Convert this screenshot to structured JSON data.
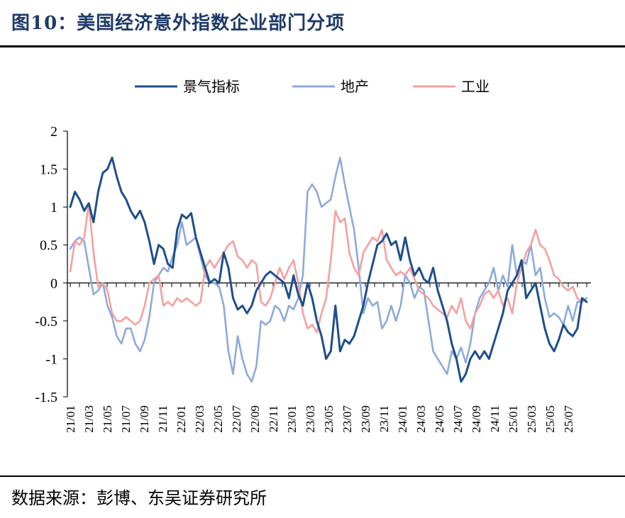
{
  "header": {
    "title": "图10：美国经济意外指数企业部门分项"
  },
  "footer": {
    "source": "数据来源：彭博、东吴证券研究所"
  },
  "colors": {
    "景气指标": "#1f4e8c",
    "地产": "#8eaadb",
    "工业": "#f4a0a0"
  },
  "chart_data": {
    "type": "line",
    "title": "",
    "xlabel": "",
    "ylabel": "",
    "ylim": [
      -1.5,
      2
    ],
    "yticks": [
      "2",
      "1.5",
      "1",
      "0.5",
      "0",
      "-0.5",
      "-1",
      "-1.5"
    ],
    "xticks": [
      "21/01",
      "21/03",
      "21/05",
      "21/07",
      "21/09",
      "21/11",
      "22/01",
      "22/03",
      "22/05",
      "22/07",
      "22/09",
      "22/11",
      "23/01",
      "23/03",
      "23/05",
      "23/07",
      "23/09",
      "23/11",
      "24/01",
      "24/03",
      "24/05",
      "24/07",
      "24/09",
      "24/11",
      "25/01",
      "25/03",
      "25/05",
      "25/07"
    ],
    "legend": {
      "position": "top"
    },
    "grid": false,
    "x_start": "2021/01",
    "x_end": "2025/09",
    "series": [
      {
        "name": "景气指标",
        "values": [
          1.0,
          1.2,
          1.1,
          0.95,
          1.05,
          0.8,
          1.2,
          1.45,
          1.5,
          1.65,
          1.4,
          1.2,
          1.1,
          0.95,
          0.85,
          0.95,
          0.8,
          0.55,
          0.25,
          0.5,
          0.45,
          0.25,
          0.2,
          0.7,
          0.9,
          0.85,
          0.92,
          0.6,
          0.4,
          0.2,
          0.0,
          0.05,
          0.0,
          0.4,
          0.2,
          -0.2,
          -0.35,
          -0.3,
          -0.4,
          -0.3,
          -0.1,
          0.0,
          0.1,
          0.15,
          0.1,
          0.05,
          0.0,
          -0.2,
          0.1,
          -0.15,
          -0.3,
          0.0,
          -0.2,
          -0.5,
          -0.7,
          -1.0,
          -0.9,
          -0.3,
          -0.9,
          -0.75,
          -0.8,
          -0.7,
          -0.5,
          -0.3,
          0.0,
          0.25,
          0.5,
          0.55,
          0.65,
          0.5,
          0.55,
          0.3,
          0.6,
          0.3,
          0.1,
          0.2,
          0.05,
          0.0,
          0.2,
          -0.1,
          -0.3,
          -0.5,
          -0.8,
          -1.0,
          -1.3,
          -1.2,
          -1.0,
          -0.9,
          -1.0,
          -0.9,
          -1.0,
          -0.8,
          -0.6,
          -0.4,
          -0.1,
          0.0,
          0.1,
          0.3,
          -0.2,
          -0.1,
          0.0,
          -0.3,
          -0.6,
          -0.8,
          -0.9,
          -0.75,
          -0.55,
          -0.65,
          -0.7,
          -0.6,
          -0.2,
          -0.25
        ]
      },
      {
        "name": "地产",
        "values": [
          0.45,
          0.55,
          0.6,
          0.55,
          0.2,
          -0.15,
          -0.1,
          0.0,
          -0.3,
          -0.45,
          -0.7,
          -0.8,
          -0.6,
          -0.6,
          -0.8,
          -0.9,
          -0.75,
          -0.45,
          0.0,
          0.1,
          0.2,
          0.15,
          0.35,
          0.5,
          0.8,
          0.5,
          0.55,
          0.6,
          0.35,
          0.1,
          0.0,
          0.0,
          -0.05,
          -0.3,
          -0.9,
          -1.2,
          -0.7,
          -1.0,
          -1.2,
          -1.3,
          -1.1,
          -0.5,
          -0.55,
          -0.5,
          -0.3,
          -0.35,
          -0.5,
          -0.3,
          -0.35,
          -0.2,
          0.1,
          1.2,
          1.3,
          1.2,
          1.0,
          1.05,
          1.1,
          1.4,
          1.65,
          1.3,
          1.0,
          0.7,
          0.2,
          -0.4,
          -0.2,
          -0.3,
          -0.25,
          -0.6,
          -0.5,
          -0.3,
          -0.5,
          -0.3,
          0.1,
          0.0,
          -0.2,
          -0.05,
          -0.1,
          -0.5,
          -0.9,
          -1.0,
          -1.1,
          -1.2,
          -0.9,
          -1.0,
          -0.85,
          -1.05,
          -0.8,
          -0.4,
          -0.2,
          -0.1,
          0.0,
          0.2,
          -0.1,
          0.1,
          -0.05,
          0.5,
          0.1,
          0.3,
          0.25,
          0.5,
          0.1,
          0.2,
          -0.2,
          -0.45,
          -0.4,
          -0.45,
          -0.55,
          -0.3,
          -0.5,
          -0.25,
          -0.25,
          -0.2
        ]
      },
      {
        "name": "工业",
        "values": [
          0.15,
          0.55,
          0.5,
          0.6,
          1.05,
          0.4,
          -0.05,
          0.0,
          -0.1,
          -0.4,
          -0.5,
          -0.5,
          -0.45,
          -0.5,
          -0.55,
          -0.5,
          -0.3,
          0.0,
          0.05,
          0.1,
          -0.3,
          -0.25,
          -0.3,
          -0.2,
          -0.25,
          -0.2,
          -0.25,
          -0.3,
          -0.25,
          0.2,
          0.3,
          0.2,
          0.3,
          0.4,
          0.5,
          0.55,
          0.35,
          0.3,
          0.2,
          0.3,
          0.25,
          -0.25,
          -0.3,
          -0.2,
          0.0,
          0.2,
          0.05,
          0.2,
          0.3,
          0.0,
          -0.4,
          -0.6,
          -0.55,
          -0.65,
          -0.4,
          -0.2,
          0.3,
          0.95,
          0.8,
          0.85,
          0.4,
          0.2,
          0.1,
          0.4,
          0.5,
          0.6,
          0.55,
          0.7,
          0.3,
          0.2,
          0.1,
          0.15,
          0.1,
          0.2,
          0.05,
          -0.1,
          -0.15,
          -0.2,
          -0.3,
          -0.35,
          -0.4,
          -0.45,
          -0.3,
          -0.4,
          -0.2,
          -0.5,
          -0.6,
          -0.4,
          -0.3,
          -0.15,
          -0.1,
          -0.2,
          -0.1,
          -0.3,
          -0.2,
          -0.4,
          0.0,
          0.2,
          0.4,
          0.5,
          0.7,
          0.5,
          0.45,
          0.3,
          0.1,
          0.05,
          -0.05,
          -0.1,
          -0.05,
          -0.2,
          -0.25
        ]
      }
    ]
  }
}
